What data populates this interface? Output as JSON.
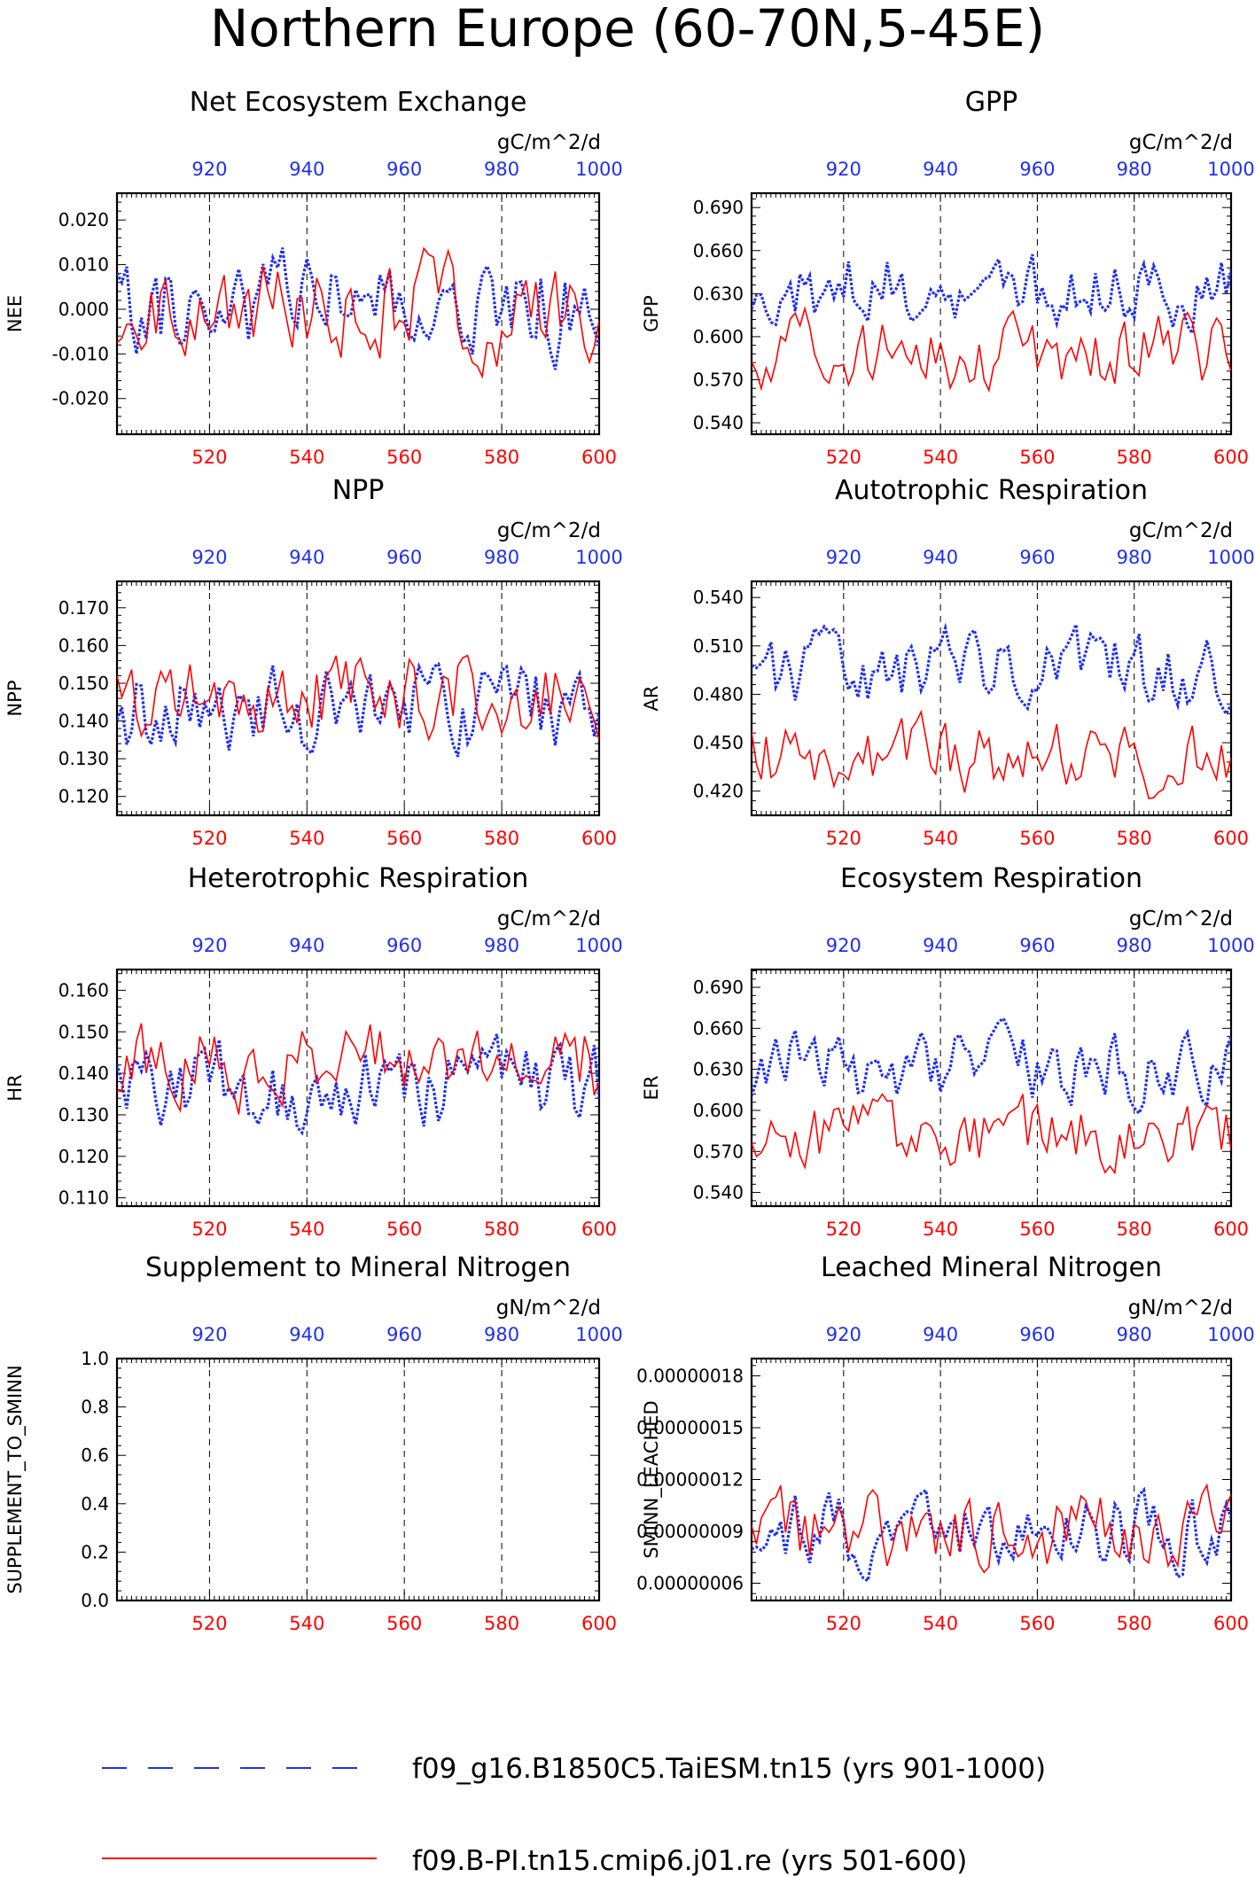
{
  "page_title": "Northern Europe (60-70N,5-45E)",
  "colors": {
    "case1": "#1f2ff0",
    "case2": "#ff0000",
    "frame": "#000000"
  },
  "legend": [
    {
      "label": "f09_g16.B1850C5.TaiESM.tn15 (yrs 901-1000)",
      "color": "#1f2ff0",
      "style": "dashed"
    },
    {
      "label": "f09.B-PI.tn15.cmip6.j01.re (yrs 501-600)",
      "color": "#ff0000",
      "style": "solid"
    }
  ],
  "chart_data": [
    {
      "type": "line",
      "title": "Net Ecosystem Exchange",
      "ylabel": "NEE",
      "unit": "gC/m^2/d",
      "ylim": [
        -0.028,
        0.026
      ],
      "yticks": [
        -0.02,
        -0.01,
        0.0,
        0.01,
        0.02
      ],
      "yticklabels": [
        "-0.020",
        "-0.010",
        "0.000",
        "0.010",
        "0.020"
      ],
      "xlim_bottom": [
        501,
        600
      ],
      "xticks_bottom": [
        520,
        540,
        560,
        580,
        600
      ],
      "xlim_top": [
        901,
        1000
      ],
      "xticks_top": [
        920,
        940,
        960,
        980,
        1000
      ],
      "series": [
        {
          "name": "f09_g16.B1850C5.TaiESM.tn15 (yrs 901-1000)",
          "color": "#1f2ff0",
          "base": 0.0,
          "amp": 0.011,
          "seed": 11
        },
        {
          "name": "f09.B-PI.tn15.cmip6.j01.re (yrs 501-600)",
          "color": "#ff0000",
          "base": 0.0,
          "amp": 0.011,
          "seed": 21
        }
      ]
    },
    {
      "type": "line",
      "title": "GPP",
      "ylabel": "GPP",
      "unit": "gC/m^2/d",
      "ylim": [
        0.532,
        0.7
      ],
      "yticks": [
        0.54,
        0.57,
        0.6,
        0.63,
        0.66,
        0.69
      ],
      "yticklabels": [
        "0.540",
        "0.570",
        "0.600",
        "0.630",
        "0.660",
        "0.690"
      ],
      "xlim_bottom": [
        501,
        600
      ],
      "xticks_bottom": [
        520,
        540,
        560,
        580,
        600
      ],
      "xlim_top": [
        901,
        1000
      ],
      "xticks_top": [
        920,
        940,
        960,
        980,
        1000
      ],
      "series": [
        {
          "name": "f09_g16.B1850C5.TaiESM.tn15 (yrs 901-1000)",
          "color": "#1f2ff0",
          "base": 0.635,
          "amp": 0.025,
          "seed": 12
        },
        {
          "name": "f09.B-PI.tn15.cmip6.j01.re (yrs 501-600)",
          "color": "#ff0000",
          "base": 0.59,
          "amp": 0.025,
          "seed": 22
        }
      ]
    },
    {
      "type": "line",
      "title": "NPP",
      "ylabel": "NPP",
      "unit": "gC/m^2/d",
      "ylim": [
        0.115,
        0.177
      ],
      "yticks": [
        0.12,
        0.13,
        0.14,
        0.15,
        0.16,
        0.17
      ],
      "yticklabels": [
        "0.120",
        "0.130",
        "0.140",
        "0.150",
        "0.160",
        "0.170"
      ],
      "xlim_bottom": [
        501,
        600
      ],
      "xticks_bottom": [
        520,
        540,
        560,
        580,
        600
      ],
      "xlim_top": [
        901,
        1000
      ],
      "xticks_top": [
        920,
        940,
        960,
        980,
        1000
      ],
      "series": [
        {
          "name": "f09_g16.B1850C5.TaiESM.tn15 (yrs 901-1000)",
          "color": "#1f2ff0",
          "base": 0.143,
          "amp": 0.011,
          "seed": 13
        },
        {
          "name": "f09.B-PI.tn15.cmip6.j01.re (yrs 501-600)",
          "color": "#ff0000",
          "base": 0.148,
          "amp": 0.011,
          "seed": 23
        }
      ]
    },
    {
      "type": "line",
      "title": "Autotrophic Respiration",
      "ylabel": "AR",
      "unit": "gC/m^2/d",
      "ylim": [
        0.405,
        0.55
      ],
      "yticks": [
        0.42,
        0.45,
        0.48,
        0.51,
        0.54
      ],
      "yticklabels": [
        "0.420",
        "0.450",
        "0.480",
        "0.510",
        "0.540"
      ],
      "xlim_bottom": [
        501,
        600
      ],
      "xticks_bottom": [
        520,
        540,
        560,
        580,
        600
      ],
      "xlim_top": [
        901,
        1000
      ],
      "xticks_top": [
        920,
        940,
        960,
        980,
        1000
      ],
      "series": [
        {
          "name": "f09_g16.B1850C5.TaiESM.tn15 (yrs 901-1000)",
          "color": "#1f2ff0",
          "base": 0.495,
          "amp": 0.022,
          "seed": 14
        },
        {
          "name": "f09.B-PI.tn15.cmip6.j01.re (yrs 501-600)",
          "color": "#ff0000",
          "base": 0.44,
          "amp": 0.022,
          "seed": 24
        }
      ]
    },
    {
      "type": "line",
      "title": "Heterotrophic Respiration",
      "ylabel": "HR",
      "unit": "gC/m^2/d",
      "ylim": [
        0.108,
        0.165
      ],
      "yticks": [
        0.11,
        0.12,
        0.13,
        0.14,
        0.15,
        0.16
      ],
      "yticklabels": [
        "0.110",
        "0.120",
        "0.130",
        "0.140",
        "0.150",
        "0.160"
      ],
      "xlim_bottom": [
        501,
        600
      ],
      "xticks_bottom": [
        520,
        540,
        560,
        580,
        600
      ],
      "xlim_top": [
        901,
        1000
      ],
      "xticks_top": [
        920,
        940,
        960,
        980,
        1000
      ],
      "series": [
        {
          "name": "f09_g16.B1850C5.TaiESM.tn15 (yrs 901-1000)",
          "color": "#1f2ff0",
          "base": 0.137,
          "amp": 0.01,
          "seed": 15
        },
        {
          "name": "f09.B-PI.tn15.cmip6.j01.re (yrs 501-600)",
          "color": "#ff0000",
          "base": 0.142,
          "amp": 0.01,
          "seed": 25
        }
      ]
    },
    {
      "type": "line",
      "title": "Ecosystem Respiration",
      "ylabel": "ER",
      "unit": "gC/m^2/d",
      "ylim": [
        0.53,
        0.703
      ],
      "yticks": [
        0.54,
        0.57,
        0.6,
        0.63,
        0.66,
        0.69
      ],
      "yticklabels": [
        "0.540",
        "0.570",
        "0.600",
        "0.630",
        "0.660",
        "0.690"
      ],
      "xlim_bottom": [
        501,
        600
      ],
      "xticks_bottom": [
        520,
        540,
        560,
        580,
        600
      ],
      "xlim_top": [
        901,
        1000
      ],
      "xticks_top": [
        920,
        940,
        960,
        980,
        1000
      ],
      "series": [
        {
          "name": "f09_g16.B1850C5.TaiESM.tn15 (yrs 901-1000)",
          "color": "#1f2ff0",
          "base": 0.632,
          "amp": 0.025,
          "seed": 16
        },
        {
          "name": "f09.B-PI.tn15.cmip6.j01.re (yrs 501-600)",
          "color": "#ff0000",
          "base": 0.582,
          "amp": 0.025,
          "seed": 26
        }
      ]
    },
    {
      "type": "line",
      "title": "Supplement to Mineral Nitrogen",
      "ylabel": "SUPPLEMENT_TO_SMINN",
      "unit": "gN/m^2/d",
      "ylim": [
        0.0,
        1.0
      ],
      "yticks": [
        0.0,
        0.2,
        0.4,
        0.6,
        0.8,
        1.0
      ],
      "yticklabels": [
        "0.0",
        "0.2",
        "0.4",
        "0.6",
        "0.8",
        "1.0"
      ],
      "xlim_bottom": [
        501,
        600
      ],
      "xticks_bottom": [
        520,
        540,
        560,
        580,
        600
      ],
      "xlim_top": [
        901,
        1000
      ],
      "xticks_top": [
        920,
        940,
        960,
        980,
        1000
      ],
      "series": []
    },
    {
      "type": "line",
      "title": "Leached Mineral Nitrogen",
      "ylabel": "SMINN_LEACHED",
      "unit": "gN/m^2/d",
      "ylim": [
        5e-08,
        1.9e-07
      ],
      "yticks": [
        6e-08,
        9e-08,
        1.2e-07,
        1.5e-07,
        1.8e-07
      ],
      "yticklabels": [
        "0.00000006",
        "0.00000009",
        "0.00000012",
        "0.00000015",
        "0.00000018"
      ],
      "xlim_bottom": [
        501,
        600
      ],
      "xticks_bottom": [
        520,
        540,
        560,
        580,
        600
      ],
      "xlim_top": [
        901,
        1000
      ],
      "xticks_top": [
        920,
        940,
        960,
        980,
        1000
      ],
      "series": [
        {
          "name": "f09_g16.B1850C5.TaiESM.tn15 (yrs 901-1000)",
          "color": "#1f2ff0",
          "base": 9e-08,
          "amp": 2.2e-08,
          "seed": 17
        },
        {
          "name": "f09.B-PI.tn15.cmip6.j01.re (yrs 501-600)",
          "color": "#ff0000",
          "base": 9e-08,
          "amp": 2.2e-08,
          "seed": 27
        }
      ]
    }
  ]
}
